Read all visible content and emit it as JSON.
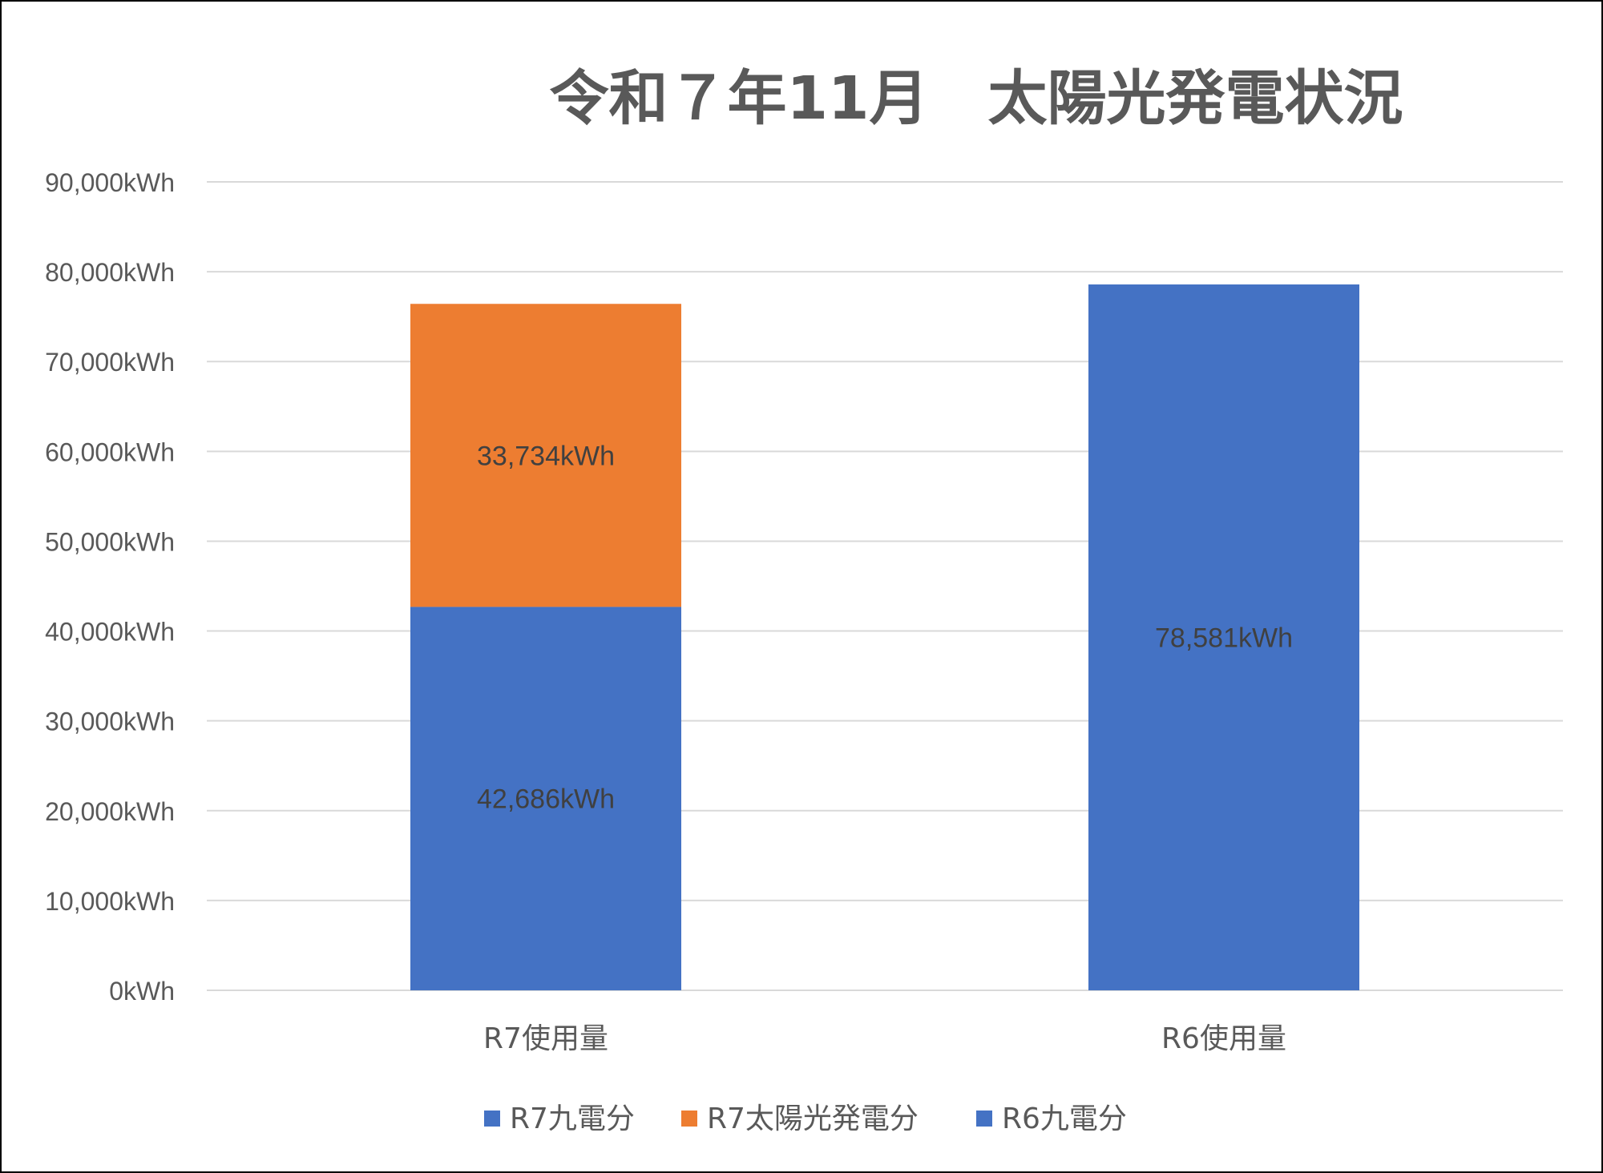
{
  "chart_data": {
    "type": "bar",
    "stacked": true,
    "title": "令和７年11月　太陽光発電状況",
    "categories": [
      "R7使用量",
      "R6使用量"
    ],
    "series": [
      {
        "name": "R7九電分",
        "values": [
          42686,
          null
        ],
        "labels": [
          "42,686kWh",
          ""
        ],
        "color": "#4472C4"
      },
      {
        "name": "R7太陽光発電分",
        "values": [
          33734,
          null
        ],
        "labels": [
          "33,734kWh",
          ""
        ],
        "color": "#ED7D31"
      },
      {
        "name": "R6九電分",
        "values": [
          null,
          78581
        ],
        "labels": [
          "",
          "78,581kWh"
        ],
        "color": "#4472C4"
      }
    ],
    "ylim": [
      0,
      90000
    ],
    "yticks": [
      {
        "value": 0,
        "label": "0kWh"
      },
      {
        "value": 10000,
        "label": "10,000kWh"
      },
      {
        "value": 20000,
        "label": "20,000kWh"
      },
      {
        "value": 30000,
        "label": "30,000kWh"
      },
      {
        "value": 40000,
        "label": "40,000kWh"
      },
      {
        "value": 50000,
        "label": "50,000kWh"
      },
      {
        "value": 60000,
        "label": "60,000kWh"
      },
      {
        "value": 70000,
        "label": "70,000kWh"
      },
      {
        "value": 80000,
        "label": "80,000kWh"
      },
      {
        "value": 90000,
        "label": "90,000kWh"
      }
    ],
    "grid": true,
    "legend_position": "bottom",
    "gridline_color": "#D9D9D9"
  }
}
